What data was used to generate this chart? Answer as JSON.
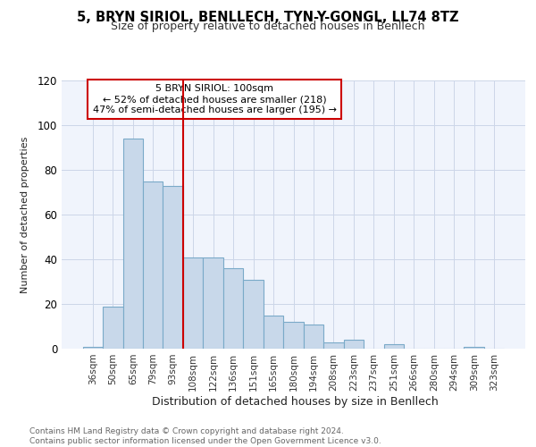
{
  "title1": "5, BRYN SIRIOL, BENLLECH, TYN-Y-GONGL, LL74 8TZ",
  "title2": "Size of property relative to detached houses in Benllech",
  "xlabel": "Distribution of detached houses by size in Benllech",
  "ylabel": "Number of detached properties",
  "categories": [
    "36sqm",
    "50sqm",
    "65sqm",
    "79sqm",
    "93sqm",
    "108sqm",
    "122sqm",
    "136sqm",
    "151sqm",
    "165sqm",
    "180sqm",
    "194sqm",
    "208sqm",
    "223sqm",
    "237sqm",
    "251sqm",
    "266sqm",
    "280sqm",
    "294sqm",
    "309sqm",
    "323sqm"
  ],
  "values": [
    1,
    19,
    94,
    75,
    73,
    41,
    41,
    36,
    31,
    15,
    12,
    11,
    3,
    4,
    0,
    2,
    0,
    0,
    0,
    1,
    0
  ],
  "bar_color": "#c8d8ea",
  "bar_edge_color": "#7aaac8",
  "vline_color": "#cc0000",
  "annotation_lines": [
    "5 BRYN SIRIOL: 100sqm",
    "← 52% of detached houses are smaller (218)",
    "47% of semi-detached houses are larger (195) →"
  ],
  "annotation_box_color": "#cc0000",
  "ylim": [
    0,
    120
  ],
  "yticks": [
    0,
    20,
    40,
    60,
    80,
    100,
    120
  ],
  "grid_color": "#ccd6e8",
  "footnote": "Contains HM Land Registry data © Crown copyright and database right 2024.\nContains public sector information licensed under the Open Government Licence v3.0.",
  "bg_color": "#f0f4fc"
}
